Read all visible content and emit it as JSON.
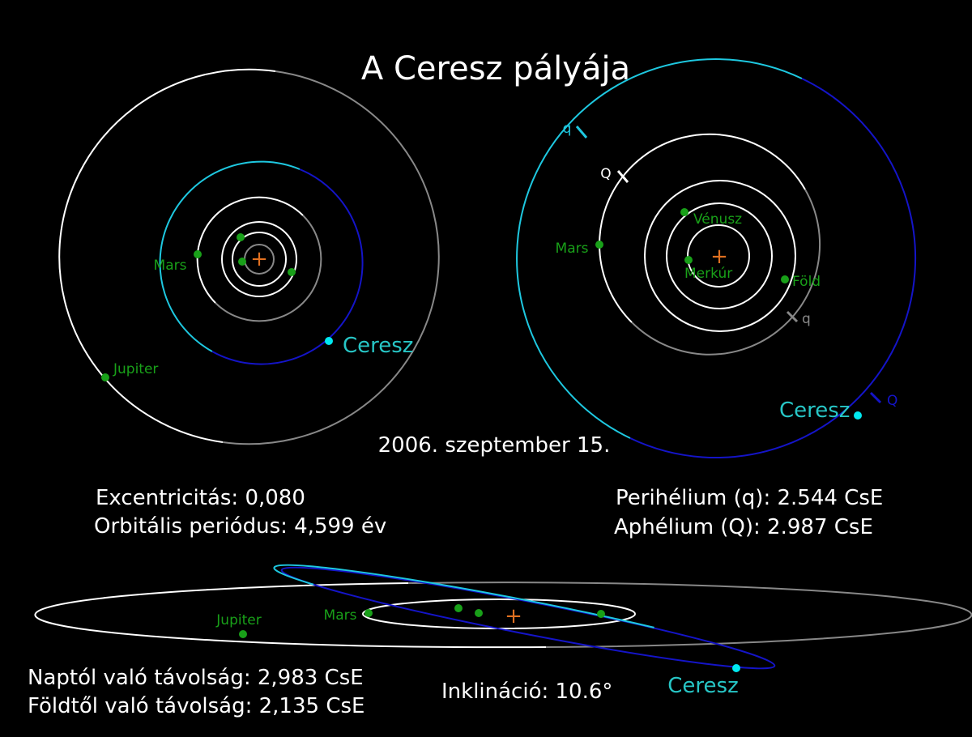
{
  "title": "A Ceresz pályája",
  "date": "2006. szeptember 15.",
  "top_view": {
    "mars": "Mars",
    "jupiter": "Jupiter",
    "ceres": "Ceresz"
  },
  "inner_view": {
    "q_ceres": "q",
    "Q_mars": "Q",
    "venus": "Vénusz",
    "mars": "Mars",
    "mercury": "Merkúr",
    "earth": "Föld",
    "q_mars": "q",
    "ceres": "Ceresz",
    "Q_ceres": "Q"
  },
  "side_view": {
    "jupiter": "Jupiter",
    "mars": "Mars",
    "ceres": "Ceresz"
  },
  "stats": {
    "eccentricity": "Excentricitás: 0,080",
    "period": "Orbitális periódus: 4,599 év",
    "perihelion": "Perihélium (q): 2.544 CsE",
    "aphelion": "Aphélium (Q): 2.987 CsE",
    "sun_distance": "Naptól való távolság: 2,983 CsE",
    "earth_distance": "Földtől való távolság: 2,135 CsE",
    "inclination": "Inklináció: 10.6°"
  }
}
